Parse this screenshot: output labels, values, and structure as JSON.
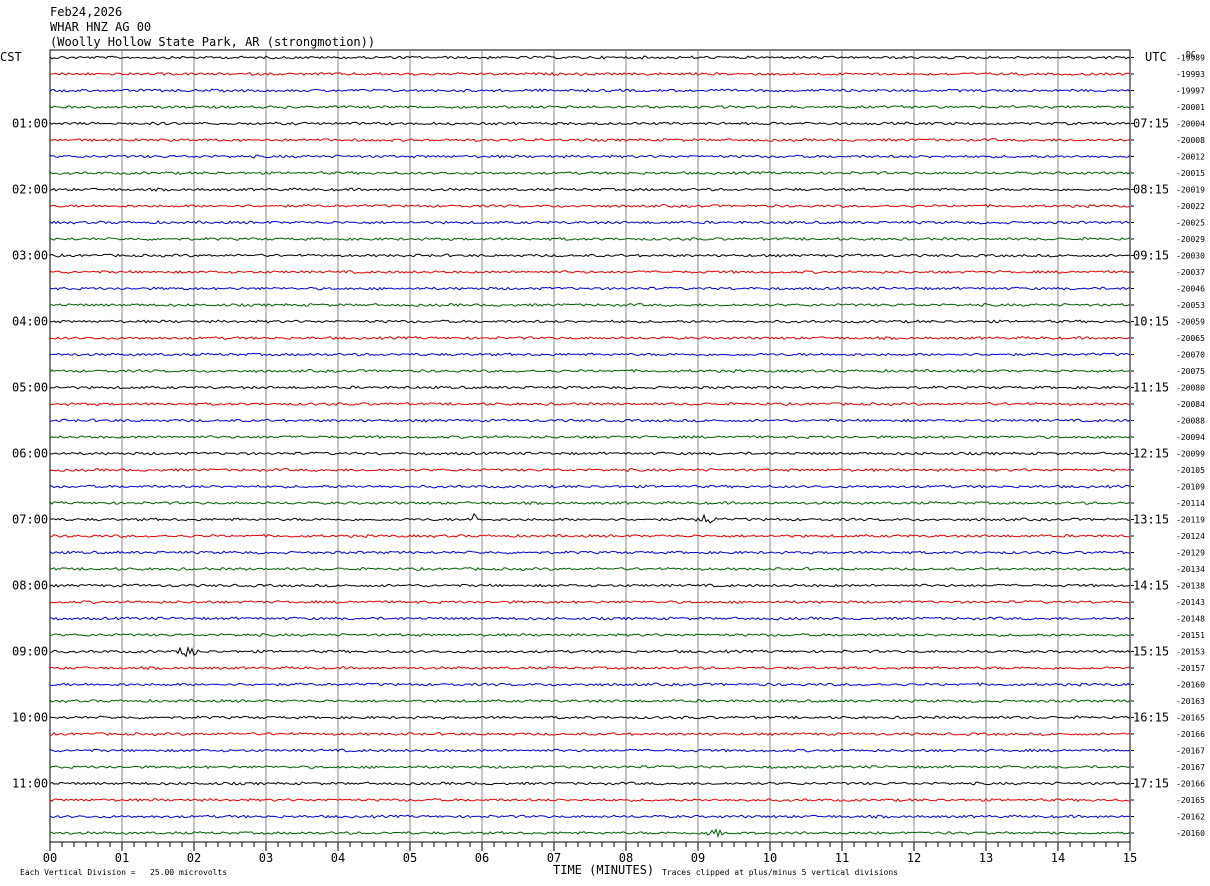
{
  "header": {
    "date": "Feb24,2026",
    "station": "WHAR HNZ AG 00",
    "location": "(Woolly Hollow State Park, AR (strongmotion))"
  },
  "left_tz": "CST",
  "right_tz": "UTC",
  "dc_label": "DC",
  "footer": {
    "scale": "Each Vertical Division =   25.00 microvolts",
    "xlabel": "TIME (MINUTES)",
    "clip_note": "Traces clipped at plus/minus 5 vertical divisions"
  },
  "colors": {
    "trace": [
      "#000000",
      "#e00000",
      "#0000d0",
      "#006000"
    ],
    "grid": "#888888"
  },
  "chart_data": {
    "type": "line",
    "x_ticks": [
      "00",
      "01",
      "02",
      "03",
      "04",
      "05",
      "06",
      "07",
      "08",
      "09",
      "10",
      "11",
      "12",
      "13",
      "14",
      "15"
    ],
    "xlim": [
      0,
      15
    ],
    "left_hour_labels": [
      "01:00",
      "02:00",
      "03:00",
      "04:00",
      "05:00",
      "06:00",
      "07:00",
      "08:00",
      "09:00",
      "10:00",
      "11:00"
    ],
    "right_hour_labels": [
      "07:15",
      "08:15",
      "09:15",
      "10:15",
      "11:15",
      "12:15",
      "13:15",
      "14:15",
      "15:15",
      "16:15",
      "17:15"
    ],
    "dc_offsets": [
      "-19989",
      "-19993",
      "-19997",
      "-20001",
      "-20004",
      "-20008",
      "-20012",
      "-20015",
      "-20019",
      "-20022",
      "-20025",
      "-20029",
      "-20030",
      "-20037",
      "-20046",
      "-20053",
      "-20059",
      "-20065",
      "-20070",
      "-20075",
      "-20080",
      "-20084",
      "-20088",
      "-20094",
      "-20099",
      "-20105",
      "-20109",
      "-20114",
      "-20119",
      "-20124",
      "-20129",
      "-20134",
      "-20138",
      "-20143",
      "-20148",
      "-20151",
      "-20153",
      "-20157",
      "-20160",
      "-20163",
      "-20165",
      "-20166",
      "-20167",
      "-20167",
      "-20166",
      "-20165",
      "-20162",
      "-20160"
    ],
    "events": [
      {
        "trace": 28,
        "minute": 5.9,
        "kind": "spike"
      },
      {
        "trace": 28,
        "minute": 9.1,
        "kind": "burst"
      },
      {
        "trace": 36,
        "minute": 1.9,
        "kind": "burst"
      },
      {
        "trace": 47,
        "minute": 9.25,
        "kind": "burst"
      }
    ]
  }
}
